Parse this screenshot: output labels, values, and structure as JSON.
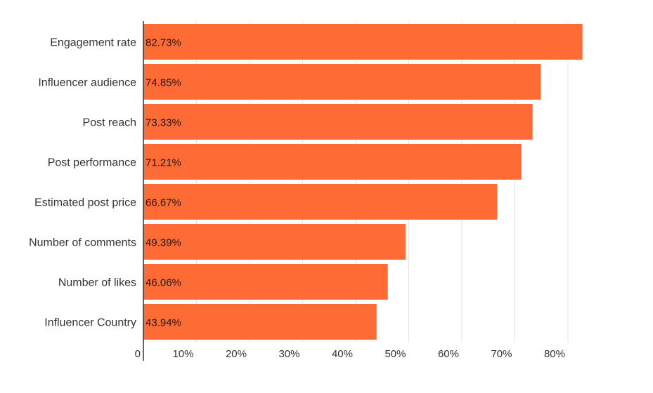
{
  "chart_data": {
    "type": "bar",
    "orientation": "horizontal",
    "categories": [
      "Engagement rate",
      "Influencer audience",
      "Post reach",
      "Post performance",
      "Estimated post price",
      "Number of comments",
      "Number of likes",
      "Influencer Country"
    ],
    "values": [
      82.73,
      74.85,
      73.33,
      71.21,
      66.67,
      49.39,
      46.06,
      43.94
    ],
    "data_labels": [
      "82.73%",
      "74.85%",
      "73.33%",
      "71.21%",
      "66.67%",
      "49.39%",
      "46.06%",
      "43.94%"
    ],
    "xlim": [
      0,
      88
    ],
    "x_ticks": [
      0,
      10,
      20,
      30,
      40,
      50,
      60,
      70,
      80
    ],
    "x_tick_labels": [
      "0",
      "10%",
      "20%",
      "30%",
      "40%",
      "50%",
      "60%",
      "70%",
      "80%"
    ],
    "title": "",
    "xlabel": "",
    "ylabel": "",
    "grid": "vertical",
    "legend": "none",
    "bar_color": "#ff6b35"
  }
}
